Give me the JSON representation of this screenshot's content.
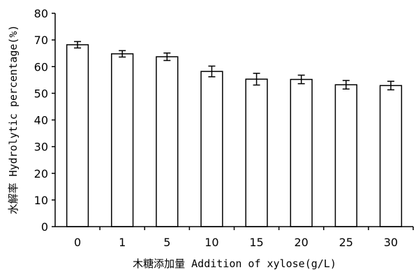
{
  "chart_data": {
    "type": "bar",
    "xlabel": "木糖添加量 Addition of xylose(g/L)",
    "ylabel": "水解率 Hydrolytic percentage(%)",
    "categories": [
      "0",
      "1",
      "5",
      "10",
      "15",
      "20",
      "25",
      "30"
    ],
    "values": [
      68.2,
      64.8,
      63.7,
      58.2,
      55.3,
      55.2,
      53.2,
      52.9
    ],
    "errors": [
      1.2,
      1.2,
      1.4,
      2.0,
      2.2,
      1.6,
      1.6,
      1.6
    ],
    "ylim": [
      0,
      80
    ],
    "yticks": [
      "0",
      "10",
      "20",
      "30",
      "40",
      "50",
      "60",
      "70",
      "80"
    ],
    "grid": false,
    "bar_fill": "#ffffff",
    "bar_stroke": "#000000"
  }
}
